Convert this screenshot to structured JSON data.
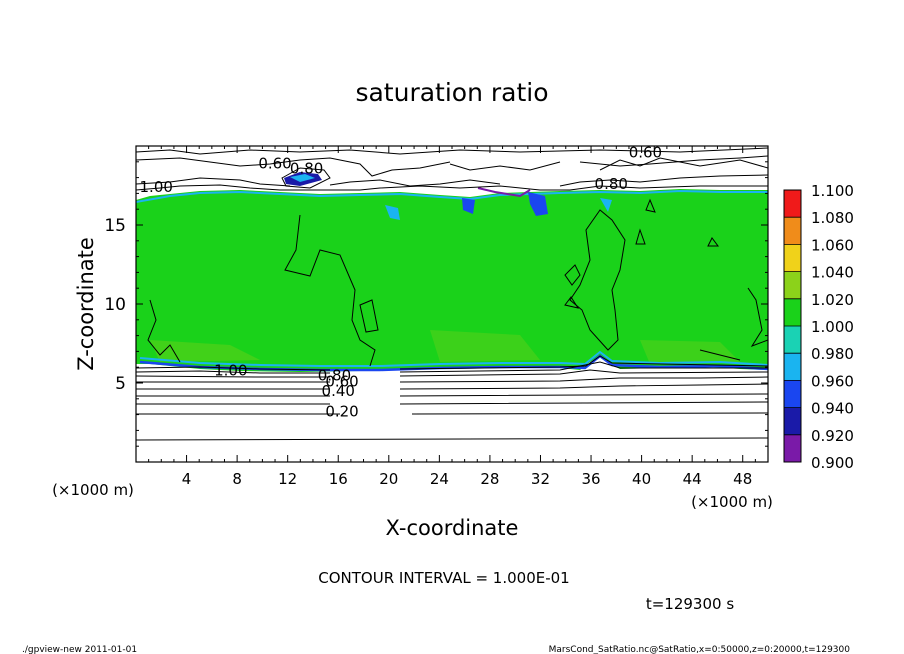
{
  "chart_data": {
    "type": "heatmap",
    "title": "saturation ratio",
    "xlabel": "X-coordinate",
    "ylabel": "Z-coordinate",
    "x_unit_label": "(×1000 m)",
    "y_unit_label": "(×1000 m)",
    "xlim": [
      0,
      50
    ],
    "ylim": [
      0,
      20
    ],
    "x_ticks": [
      4,
      8,
      12,
      16,
      20,
      24,
      28,
      32,
      36,
      40,
      44,
      48
    ],
    "y_ticks": [
      5,
      10,
      15
    ],
    "colorbar": {
      "levels": [
        0.9,
        0.92,
        0.94,
        0.96,
        0.98,
        1.0,
        1.02,
        1.04,
        1.06,
        1.08,
        1.1
      ],
      "labels": [
        "0.900",
        "0.920",
        "0.940",
        "0.960",
        "0.980",
        "1.000",
        "1.020",
        "1.040",
        "1.060",
        "1.080",
        "1.100"
      ],
      "colors": [
        "#7a1aa8",
        "#1a1aa8",
        "#1a46f0",
        "#1ab4f0",
        "#1ad2b4",
        "#1ad21a",
        "#8cd21a",
        "#f0d21a",
        "#f08c1a",
        "#f01a1a",
        "#f08c8c"
      ]
    },
    "contour_labels": [
      {
        "text": "0.60",
        "x": 11.0,
        "z": 18.7
      },
      {
        "text": "0.80",
        "x": 13.5,
        "z": 18.4
      },
      {
        "text": "1.00",
        "x": 1.6,
        "z": 17.2
      },
      {
        "text": "0.60",
        "x": 40.3,
        "z": 19.4
      },
      {
        "text": "0.80",
        "x": 37.6,
        "z": 17.4
      },
      {
        "text": "1.00",
        "x": 7.5,
        "z": 5.6
      },
      {
        "text": "0.80",
        "x": 15.7,
        "z": 5.3
      },
      {
        "text": "0.60",
        "x": 16.3,
        "z": 4.9
      },
      {
        "text": "0.40",
        "x": 16.0,
        "z": 4.3
      },
      {
        "text": "0.20",
        "x": 16.3,
        "z": 3.0
      }
    ],
    "contour_interval_text": "CONTOUR INTERVAL = 1.000E-01",
    "time_text": "t=129300 s"
  },
  "footer": {
    "left": "./gpview-new   2011-01-01",
    "right": "MarsCond_SatRatio.nc@SatRatio,x=0:50000,z=0:20000,t=129300"
  }
}
